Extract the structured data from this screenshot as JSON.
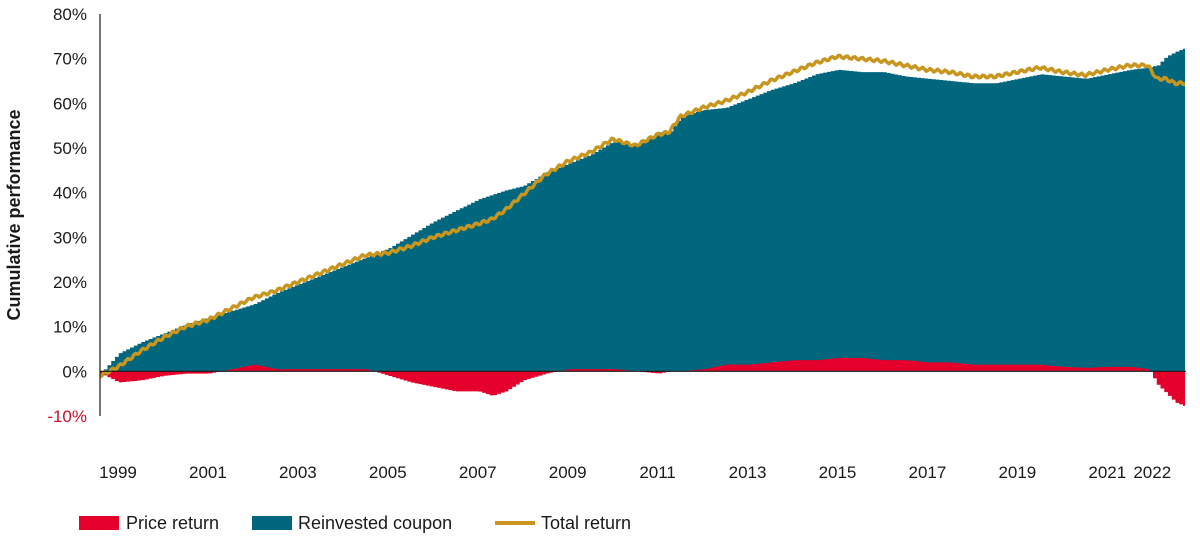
{
  "chart_data": {
    "type": "area",
    "title": "",
    "ylabel": "Cumulative performance",
    "xlabel": "",
    "xlim": [
      1998.6,
      2022.75
    ],
    "ylim": [
      -10,
      80
    ],
    "y_ticks": [
      80,
      70,
      60,
      50,
      40,
      30,
      20,
      10,
      0,
      -10
    ],
    "y_tick_labels": [
      "80%",
      "70%",
      "60%",
      "50%",
      "40%",
      "30%",
      "20%",
      "10%",
      "0%",
      "-10%"
    ],
    "x_ticks": [
      1999,
      2001,
      2003,
      2005,
      2007,
      2009,
      2011,
      2013,
      2015,
      2017,
      2019,
      2021,
      2022
    ],
    "x_tick_labels": [
      "1999",
      "2001",
      "2003",
      "2005",
      "2007",
      "2009",
      "2011",
      "2013",
      "2015",
      "2017",
      "2019",
      "2021",
      "2022"
    ],
    "grid": false,
    "legend_position": "bottom-left",
    "colors": {
      "price_return": "#e4002b",
      "reinvested_coupon": "#00677f",
      "total_return": "#c8961e",
      "negative_tick": "#c8102e"
    },
    "x": [
      1998.6,
      1999.0,
      1999.5,
      2000.0,
      2000.5,
      2001.0,
      2001.5,
      2002.0,
      2002.5,
      2003.0,
      2003.5,
      2004.0,
      2004.5,
      2005.0,
      2005.5,
      2006.0,
      2006.5,
      2007.0,
      2007.3,
      2007.6,
      2008.0,
      2008.5,
      2009.0,
      2009.5,
      2010.0,
      2010.5,
      2011.0,
      2011.25,
      2011.5,
      2012.0,
      2012.5,
      2013.0,
      2013.5,
      2014.0,
      2014.5,
      2015.0,
      2015.5,
      2016.0,
      2016.5,
      2017.0,
      2017.5,
      2018.0,
      2018.5,
      2019.0,
      2019.5,
      2020.0,
      2020.5,
      2021.0,
      2021.5,
      2021.9,
      2022.1,
      2022.3,
      2022.5,
      2022.75
    ],
    "series": [
      {
        "name": "Price return",
        "values": [
          -0.5,
          -2.5,
          -2,
          -1,
          -0.5,
          -0.5,
          0.5,
          1.5,
          0.5,
          0.5,
          0.5,
          0.5,
          0.5,
          -1,
          -2.5,
          -3.5,
          -4.5,
          -4.5,
          -5.5,
          -4.5,
          -2,
          -0.5,
          0.5,
          0.5,
          0.5,
          0,
          -0.5,
          0,
          0,
          0.5,
          1.5,
          1.5,
          2,
          2.5,
          2.5,
          3,
          3,
          2.5,
          2.5,
          2,
          2,
          1.5,
          1.5,
          1.5,
          1.5,
          1,
          0.8,
          1,
          1,
          0.5,
          -3,
          -5,
          -7,
          -8
        ]
      },
      {
        "name": "Reinvested coupon",
        "values": [
          -0.5,
          4,
          6.5,
          8.5,
          10.5,
          12,
          13.5,
          15,
          17.5,
          19.5,
          21.5,
          23.5,
          25.5,
          27.5,
          30.5,
          33.5,
          36,
          38.5,
          39.5,
          40.5,
          41.5,
          44.5,
          46.5,
          48.5,
          51.5,
          50.5,
          53.5,
          53.5,
          57,
          58.5,
          59,
          61,
          63,
          64.5,
          66.5,
          67.5,
          67,
          67,
          66,
          65.5,
          65,
          64.5,
          64.5,
          65.5,
          66.5,
          66,
          65.5,
          66.5,
          67.5,
          68,
          68.5,
          70.5,
          71.5,
          72.5
        ]
      },
      {
        "name": "Total return",
        "values": [
          -1,
          1,
          4.5,
          7.5,
          10,
          11.5,
          14,
          16.5,
          18,
          20,
          22,
          24,
          26,
          26.5,
          28,
          30,
          31.5,
          33,
          34,
          36,
          39.5,
          44,
          47,
          49,
          52,
          50.5,
          53,
          53.5,
          57,
          59,
          60.5,
          62.5,
          65,
          67,
          69,
          70.5,
          70,
          69.5,
          68.5,
          67.5,
          67,
          66,
          66,
          67,
          68,
          67,
          66.3,
          67.5,
          68.5,
          68.5,
          65.5,
          65.5,
          64.5,
          64.5
        ]
      }
    ]
  },
  "legend": {
    "items": [
      {
        "label": "Price return",
        "kind": "bar",
        "color": "#e4002b"
      },
      {
        "label": "Reinvested coupon",
        "kind": "bar",
        "color": "#00677f"
      },
      {
        "label": "Total return",
        "kind": "line",
        "color": "#c8961e"
      }
    ]
  }
}
